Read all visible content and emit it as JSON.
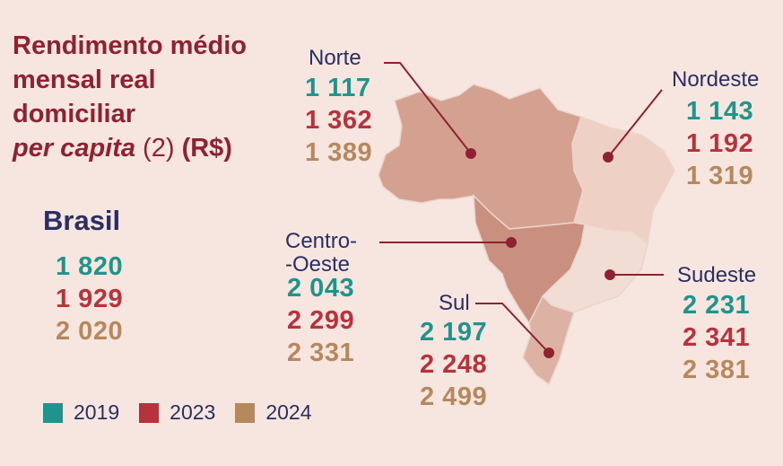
{
  "title": {
    "line1": "Rendimento médio",
    "line2": "mensal real",
    "line3": "domiciliar",
    "line4_italic": "per capita",
    "line4_note": " (2) ",
    "line4_unit": "(R$)"
  },
  "colors": {
    "2019": "#1f948c",
    "2023": "#b8323c",
    "2024": "#b5885e",
    "title": "#8f2131",
    "labels": "#2b2e63",
    "background": "#f7e6df"
  },
  "legend": [
    "2019",
    "2023",
    "2024"
  ],
  "chart_data": {
    "type": "table",
    "series_years": [
      "2019",
      "2023",
      "2024"
    ],
    "brasil": {
      "name": "Brasil",
      "values": [
        "1 820",
        "1 929",
        "2 020"
      ]
    },
    "regions": [
      {
        "name": "Norte",
        "values": [
          "1 117",
          "1 362",
          "1 389"
        ]
      },
      {
        "name": "Nordeste",
        "values": [
          "1 143",
          "1 192",
          "1 319"
        ]
      },
      {
        "name_line1": "Centro-",
        "name_line2": "-Oeste",
        "values": [
          "2 043",
          "2 299",
          "2 331"
        ]
      },
      {
        "name": "Sudeste",
        "values": [
          "2 231",
          "2 341",
          "2 381"
        ]
      },
      {
        "name": "Sul",
        "values": [
          "2 197",
          "2 248",
          "2 499"
        ]
      }
    ]
  }
}
